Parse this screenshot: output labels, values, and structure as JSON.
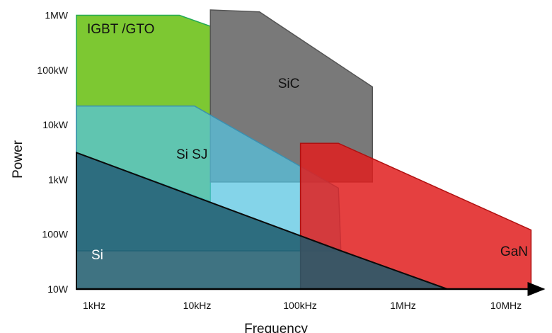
{
  "chart_data": {
    "type": "area",
    "title": "",
    "xlabel": "Frequency",
    "ylabel": "Power",
    "x_scale": "log",
    "y_scale": "log",
    "x_ticks": [
      "1kHz",
      "10kHz",
      "100kHz",
      "1MHz",
      "10MHz"
    ],
    "y_ticks": [
      "10W",
      "100W",
      "1kW",
      "10kW",
      "100kW",
      "1MW"
    ],
    "xlim_hz": [
      1000,
      28000000
    ],
    "ylim_w": [
      10,
      1000000
    ],
    "grid": false,
    "legend": "none",
    "regions": [
      {
        "name": "IGBT /GTO",
        "color": "#7dc832",
        "points": [
          [
            1000,
            1000000
          ],
          [
            10000,
            1000000
          ],
          [
            20000,
            630000
          ],
          [
            20000,
            400
          ],
          [
            1000,
            3100
          ]
        ]
      },
      {
        "name": "SiC",
        "color": "#6e6e6e",
        "points": [
          [
            20000,
            1250000
          ],
          [
            60000,
            1150000
          ],
          [
            750000,
            49000
          ],
          [
            750000,
            900
          ],
          [
            20000,
            900
          ]
        ]
      },
      {
        "name": "Si SJ",
        "color": "#55c4e0",
        "points": [
          [
            1000,
            22000
          ],
          [
            14000,
            22000
          ],
          [
            350000,
            700
          ],
          [
            370000,
            50
          ],
          [
            1000,
            50
          ]
        ]
      },
      {
        "name": "GaN",
        "color": "#e01e1e",
        "points": [
          [
            150000,
            4600
          ],
          [
            350000,
            4600
          ],
          [
            26000000,
            120
          ],
          [
            26000000,
            10
          ],
          [
            150000,
            10
          ]
        ]
      },
      {
        "name": "Si",
        "color": "#1d5a6c",
        "points": [
          [
            1000,
            3100
          ],
          [
            370000,
            50
          ],
          [
            4000000,
            10
          ],
          [
            1000,
            10
          ]
        ]
      }
    ]
  }
}
